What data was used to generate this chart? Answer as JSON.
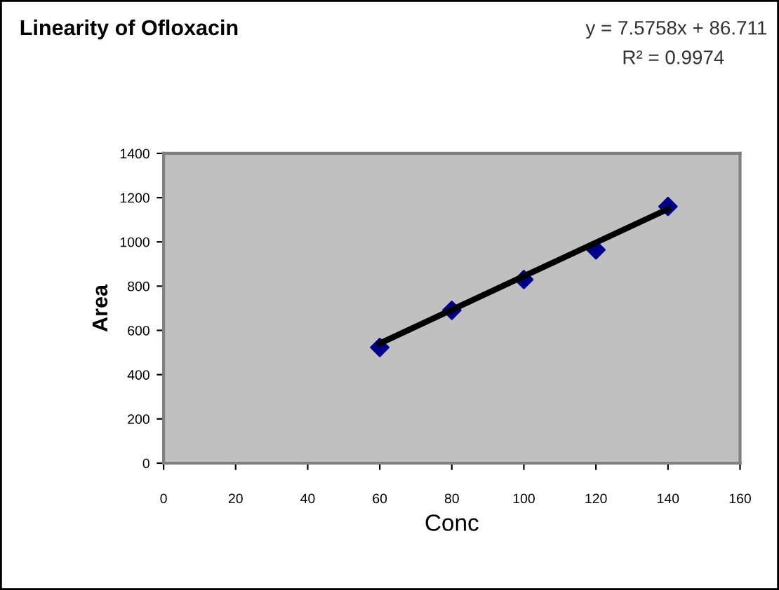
{
  "chart_data": {
    "type": "scatter",
    "title": "Linearity of Ofloxacin",
    "xlabel": "Conc",
    "ylabel": "Area",
    "annotations": [
      "y = 7.5758x + 86.711",
      "R² = 0.9974"
    ],
    "x": [
      60,
      80,
      100,
      120,
      140
    ],
    "series": [
      {
        "color": "#00008b",
        "values": [
          523,
          691,
          830,
          964,
          1160
        ],
        "marker": "diamond"
      },
      {
        "type": "line",
        "color": "#000000",
        "x": [
          60,
          140
        ],
        "values": [
          541,
          1149
        ],
        "line_style": "solid"
      }
    ],
    "xlim": [
      0,
      160
    ],
    "xticks": [
      0,
      20,
      40,
      60,
      80,
      100,
      120,
      140,
      160
    ],
    "ylim": [
      0,
      1400
    ],
    "yticks": [
      0,
      200,
      400,
      600,
      800,
      1000,
      1200,
      1400
    ],
    "grid": false,
    "legend": false
  }
}
